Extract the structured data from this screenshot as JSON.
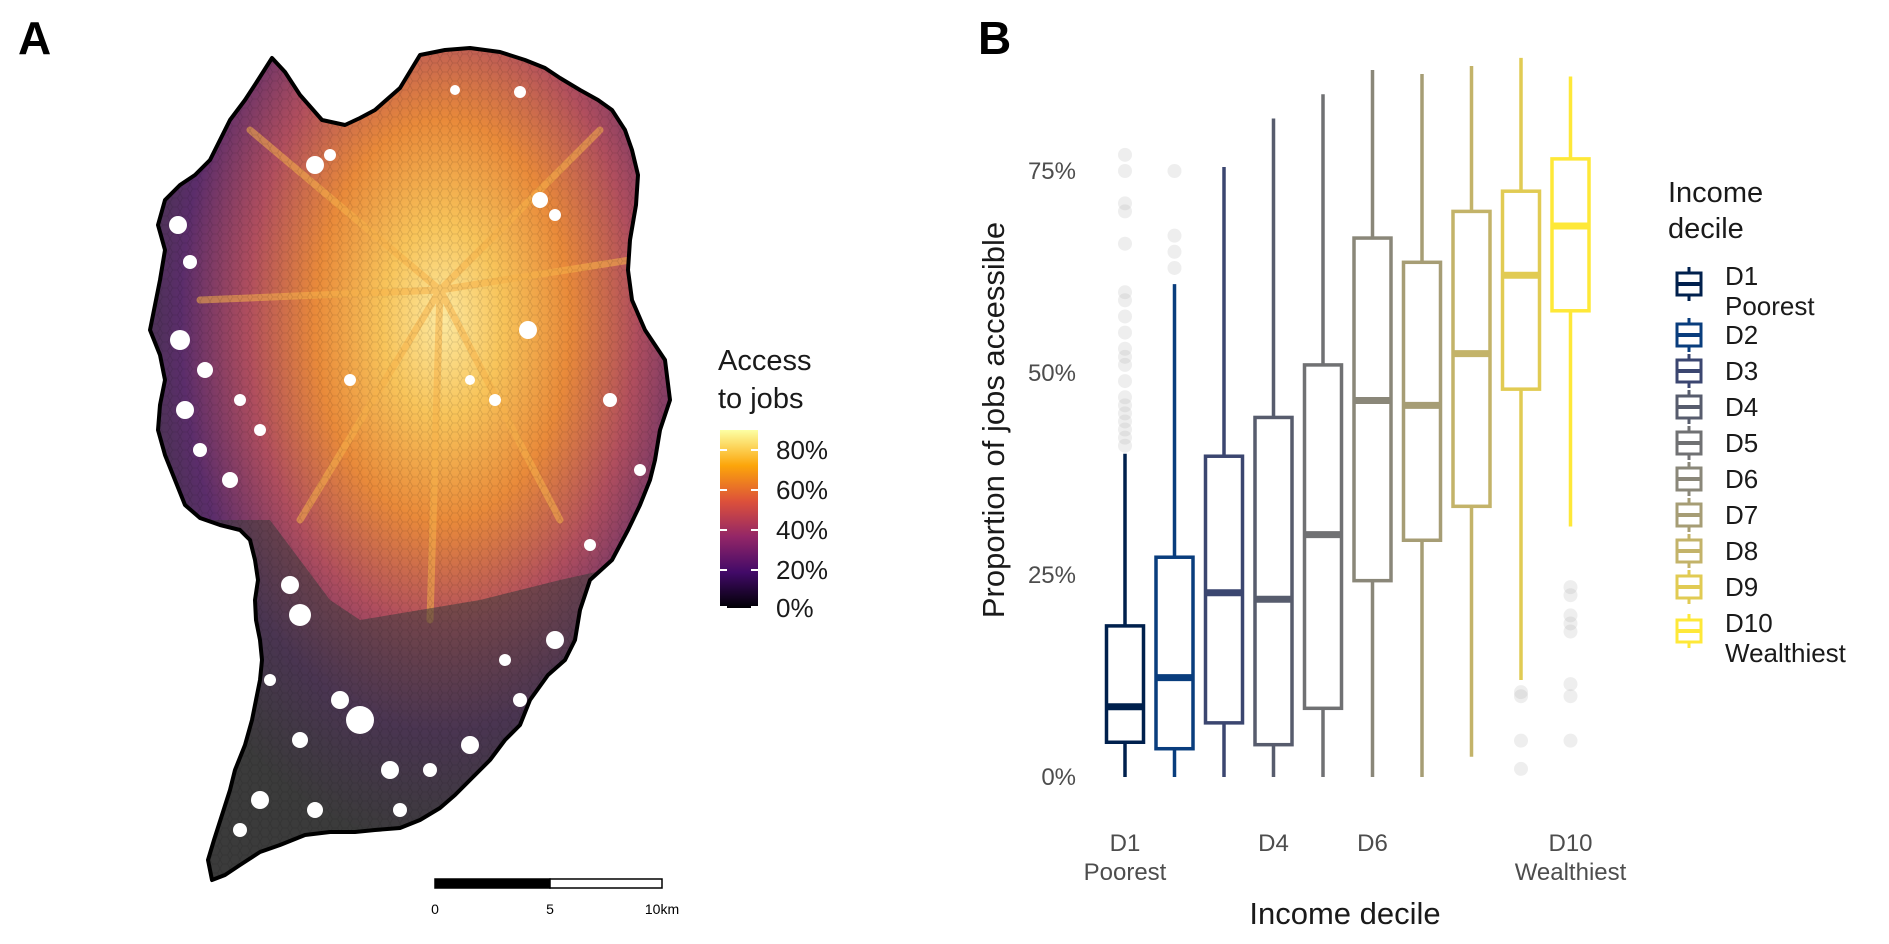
{
  "panel_labels": {
    "a": "A",
    "b": "B"
  },
  "map": {
    "legend_title": [
      "Access",
      "to jobs"
    ],
    "legend_ticks": [
      "80%",
      "60%",
      "40%",
      "20%",
      "0%"
    ],
    "colors": [
      "#000004",
      "#420a68",
      "#932667",
      "#dd513a",
      "#fca50a",
      "#fcffa4"
    ],
    "no_data_color": "#3a3a3a",
    "scale_bar": {
      "labels": [
        "0",
        "5",
        "10km"
      ]
    }
  },
  "chart_data": {
    "type": "boxplot",
    "title": "",
    "xlabel": "Income decile",
    "ylabel": "Proportion of jobs accessible",
    "ylim": [
      -0.05,
      0.9
    ],
    "y_ticks": [
      0,
      0.25,
      0.5,
      0.75
    ],
    "y_tick_labels": [
      "0%",
      "25%",
      "50%",
      "75%"
    ],
    "categories": [
      "D1",
      "D2",
      "D3",
      "D4",
      "D5",
      "D6",
      "D7",
      "D8",
      "D9",
      "D10"
    ],
    "x_tick_labels": [
      {
        "index": 0,
        "lines": [
          "D1",
          "Poorest"
        ]
      },
      {
        "index": 3,
        "lines": [
          "D4"
        ]
      },
      {
        "index": 5,
        "lines": [
          "D6"
        ]
      },
      {
        "index": 9,
        "lines": [
          "D10",
          "Wealthiest"
        ]
      }
    ],
    "colors": [
      "#00204d",
      "#093d7d",
      "#3b4670",
      "#575c6d",
      "#707173",
      "#8a8779",
      "#a69d75",
      "#c3b369",
      "#e1cb53",
      "#fee838"
    ],
    "boxes": [
      {
        "whisker_low": 0.0,
        "q1": 0.043,
        "median": 0.087,
        "q3": 0.187,
        "whisker_high": 0.4,
        "outliers": [
          0.41,
          0.42,
          0.43,
          0.44,
          0.45,
          0.46,
          0.47,
          0.49,
          0.51,
          0.52,
          0.53,
          0.55,
          0.57,
          0.59,
          0.6,
          0.66,
          0.7,
          0.71,
          0.75,
          0.77
        ]
      },
      {
        "whisker_low": 0.0,
        "q1": 0.035,
        "median": 0.123,
        "q3": 0.272,
        "whisker_high": 0.61,
        "outliers": [
          0.63,
          0.65,
          0.67,
          0.75
        ]
      },
      {
        "whisker_low": 0.0,
        "q1": 0.067,
        "median": 0.228,
        "q3": 0.397,
        "whisker_high": 0.755,
        "outliers": []
      },
      {
        "whisker_low": 0.0,
        "q1": 0.04,
        "median": 0.22,
        "q3": 0.445,
        "whisker_high": 0.815,
        "outliers": []
      },
      {
        "whisker_low": 0.0,
        "q1": 0.085,
        "median": 0.3,
        "q3": 0.51,
        "whisker_high": 0.845,
        "outliers": []
      },
      {
        "whisker_low": 0.0,
        "q1": 0.243,
        "median": 0.466,
        "q3": 0.667,
        "whisker_high": 0.875,
        "outliers": []
      },
      {
        "whisker_low": 0.0,
        "q1": 0.293,
        "median": 0.46,
        "q3": 0.637,
        "whisker_high": 0.87,
        "outliers": []
      },
      {
        "whisker_low": 0.025,
        "q1": 0.335,
        "median": 0.524,
        "q3": 0.7,
        "whisker_high": 0.88,
        "outliers": []
      },
      {
        "whisker_low": 0.12,
        "q1": 0.48,
        "median": 0.621,
        "q3": 0.725,
        "whisker_high": 0.89,
        "outliers": [
          0.01,
          0.045,
          0.1,
          0.105
        ]
      },
      {
        "whisker_low": 0.31,
        "q1": 0.577,
        "median": 0.682,
        "q3": 0.765,
        "whisker_high": 0.867,
        "outliers": [
          0.045,
          0.1,
          0.115,
          0.18,
          0.19,
          0.2,
          0.225,
          0.235
        ]
      }
    ],
    "legend": {
      "title": [
        "Income",
        "decile"
      ],
      "entries": [
        [
          "D1",
          "Poorest"
        ],
        [
          "D2"
        ],
        [
          "D3"
        ],
        [
          "D4"
        ],
        [
          "D5"
        ],
        [
          "D6"
        ],
        [
          "D7"
        ],
        [
          "D8"
        ],
        [
          "D9"
        ],
        [
          "D10",
          "Wealthiest"
        ]
      ]
    }
  }
}
